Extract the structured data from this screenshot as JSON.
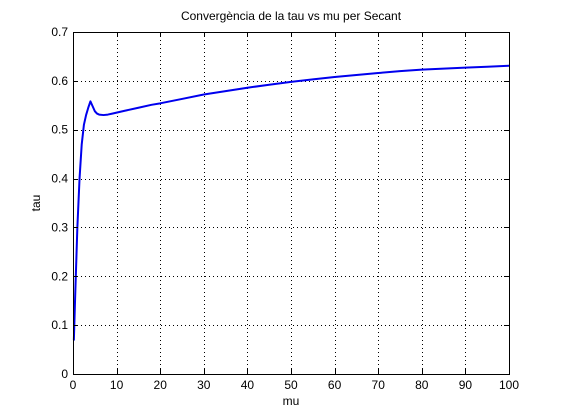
{
  "chart_data": {
    "type": "line",
    "title": "Convergència de la tau vs mu per Secant",
    "xlabel": "mu",
    "ylabel": "tau",
    "xlim": [
      0,
      100
    ],
    "ylim": [
      0,
      0.7
    ],
    "xticks": [
      0,
      10,
      20,
      30,
      40,
      50,
      60,
      70,
      80,
      90,
      100
    ],
    "yticks": [
      0,
      0.1,
      0.2,
      0.3,
      0.4,
      0.5,
      0.6,
      0.7
    ],
    "xtick_labels": [
      "0",
      "10",
      "20",
      "30",
      "40",
      "50",
      "60",
      "70",
      "80",
      "90",
      "100"
    ],
    "ytick_labels": [
      "0",
      "0.1",
      "0.2",
      "0.3",
      "0.4",
      "0.5",
      "0.6",
      "0.7"
    ],
    "grid": true,
    "grid_style": "dotted",
    "series": [
      {
        "color": "#0000ee",
        "x": [
          0.2,
          0.5,
          1.0,
          1.5,
          2.0,
          2.5,
          3.0,
          3.5,
          4.0,
          4.5,
          5.0,
          5.5,
          6.0,
          7.0,
          8.0,
          9.0,
          10.0,
          12.0,
          15.0,
          18.0,
          20.0,
          25.0,
          30.0,
          35.0,
          40.0,
          45.0,
          50.0,
          55.0,
          60.0,
          65.0,
          70.0,
          75.0,
          80.0,
          85.0,
          90.0,
          95.0,
          100.0
        ],
        "y": [
          0.07,
          0.16,
          0.3,
          0.4,
          0.47,
          0.51,
          0.53,
          0.545,
          0.558,
          0.548,
          0.538,
          0.533,
          0.531,
          0.53,
          0.531,
          0.533,
          0.535,
          0.539,
          0.545,
          0.551,
          0.554,
          0.563,
          0.572,
          0.579,
          0.586,
          0.592,
          0.598,
          0.603,
          0.608,
          0.612,
          0.616,
          0.62,
          0.623,
          0.625,
          0.627,
          0.629,
          0.631
        ]
      }
    ]
  }
}
